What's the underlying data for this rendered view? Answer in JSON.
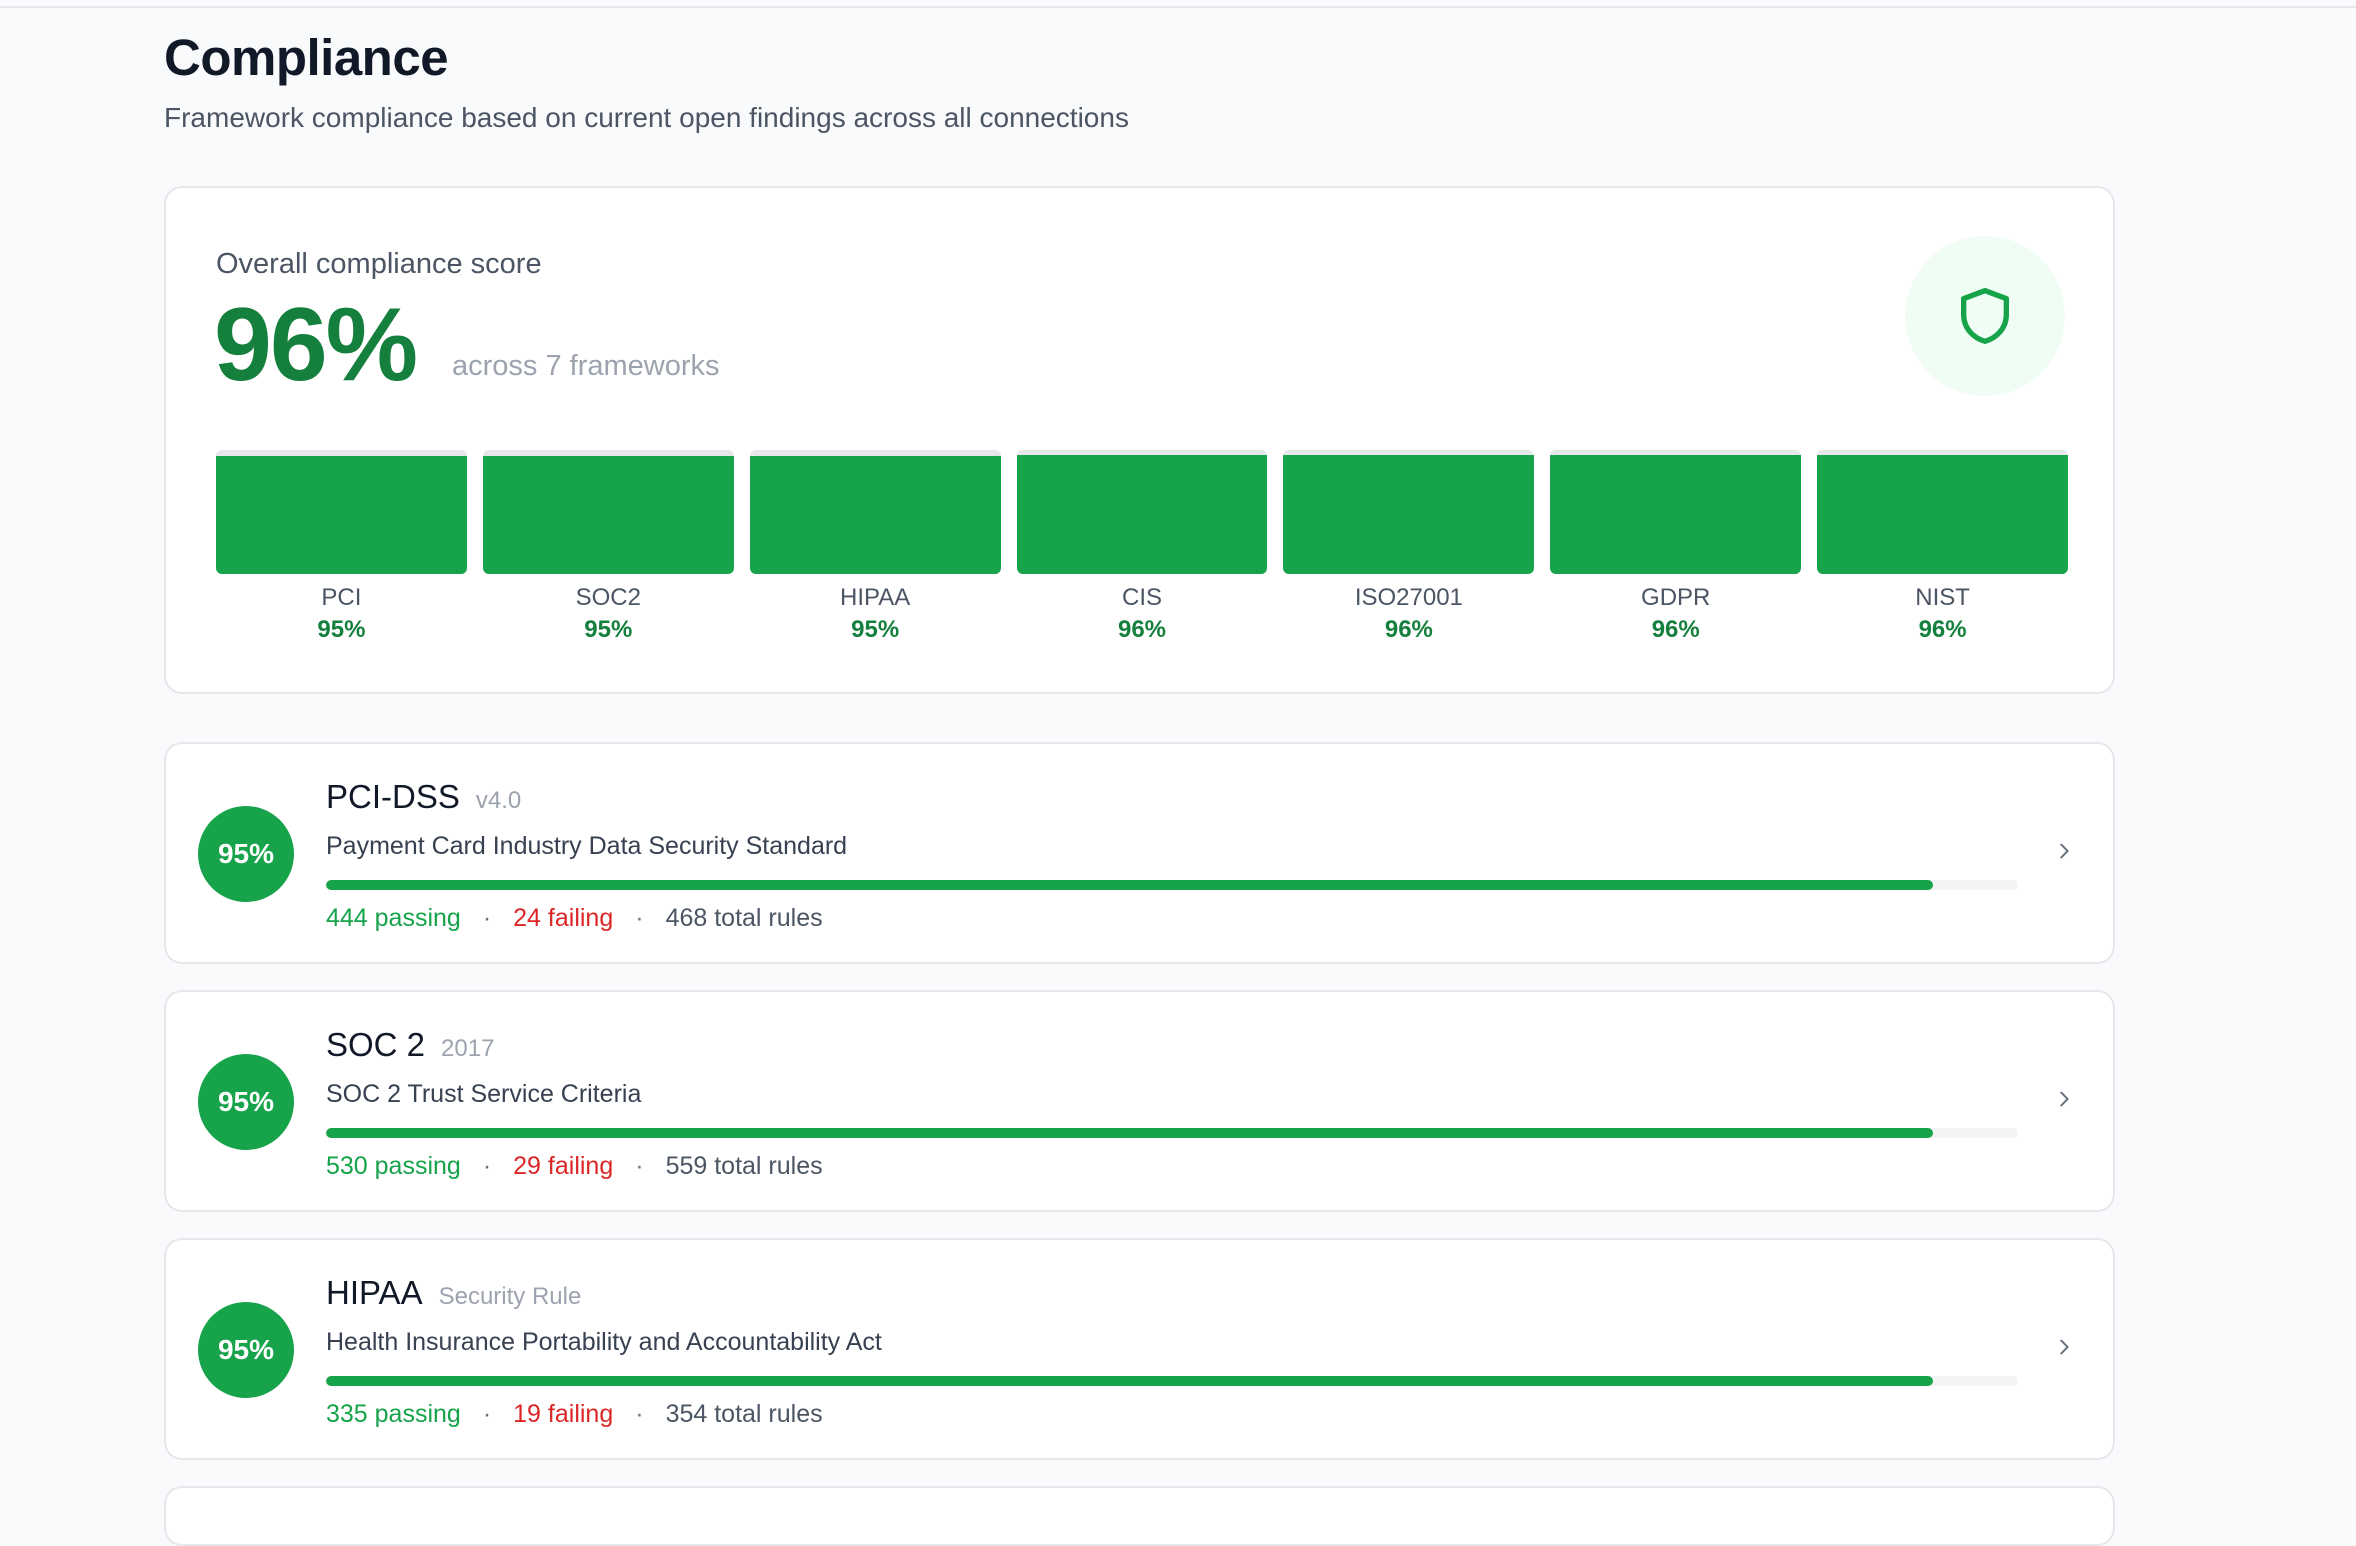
{
  "page": {
    "title": "Compliance",
    "subtitle": "Framework compliance based on current open findings across all connections"
  },
  "overall": {
    "label": "Overall compliance score",
    "score": "96%",
    "sub": "across 7 frameworks",
    "icon": "shield-icon",
    "frameworks": [
      {
        "name": "PCI",
        "pct": "95%",
        "value": 0.95
      },
      {
        "name": "SOC2",
        "pct": "95%",
        "value": 0.95
      },
      {
        "name": "HIPAA",
        "pct": "95%",
        "value": 0.95
      },
      {
        "name": "CIS",
        "pct": "96%",
        "value": 0.96
      },
      {
        "name": "ISO27001",
        "pct": "96%",
        "value": 0.96
      },
      {
        "name": "GDPR",
        "pct": "96%",
        "value": 0.96
      },
      {
        "name": "NIST",
        "pct": "96%",
        "value": 0.96
      }
    ]
  },
  "frameworks": [
    {
      "score": "95%",
      "name": "PCI-DSS",
      "version": "v4.0",
      "description": "Payment Card Industry Data Security Standard",
      "passing": "444 passing",
      "failing": "24 failing",
      "total": "468 total rules",
      "progress": 0.95
    },
    {
      "score": "95%",
      "name": "SOC 2",
      "version": "2017",
      "description": "SOC 2 Trust Service Criteria",
      "passing": "530 passing",
      "failing": "29 failing",
      "total": "559 total rules",
      "progress": 0.95
    },
    {
      "score": "95%",
      "name": "HIPAA",
      "version": "Security Rule",
      "description": "Health Insurance Portability and Accountability Act",
      "passing": "335 passing",
      "failing": "19 failing",
      "total": "354 total rules",
      "progress": 0.95
    }
  ],
  "separator": "·",
  "colors": {
    "accent": "#16a34a",
    "accent_text": "#15803d",
    "failing": "#dc2626",
    "shield_bg": "#f0fdf4"
  }
}
